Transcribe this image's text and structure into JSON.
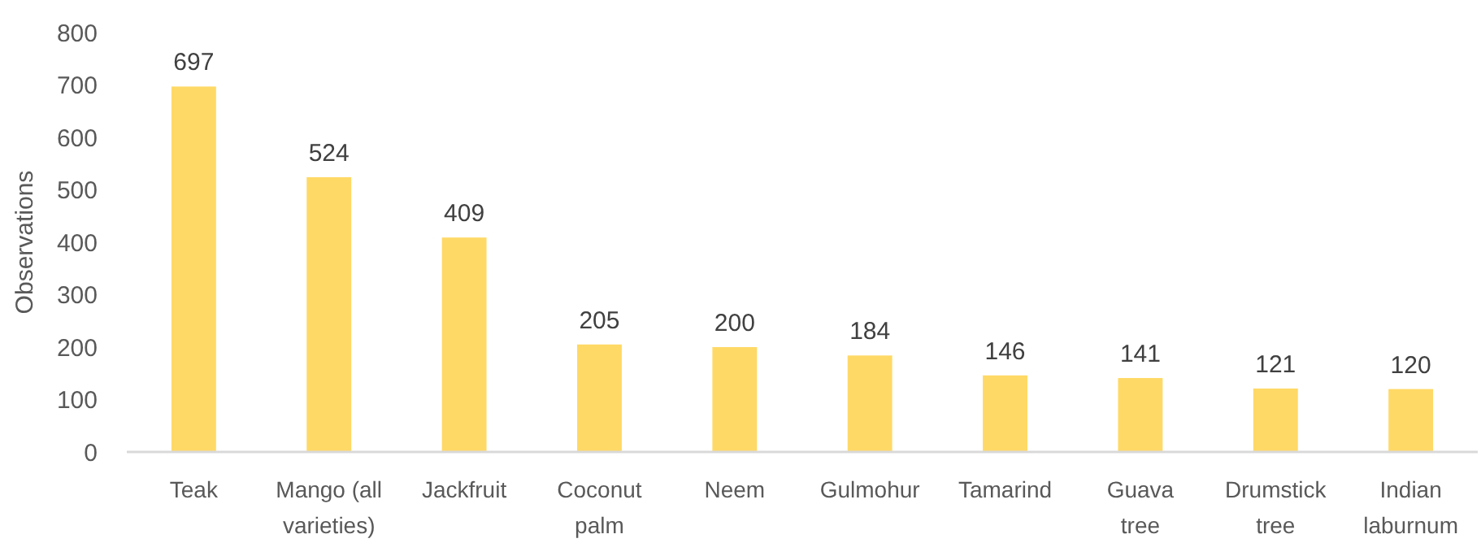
{
  "chart_data": {
    "type": "bar",
    "ylabel": "Observations",
    "categories": [
      "Teak",
      "Mango (all varieties)",
      "Jackfruit",
      "Coconut palm",
      "Neem",
      "Gulmohur",
      "Tamarind",
      "Guava tree",
      "Drumstick tree",
      "Indian laburnum"
    ],
    "values": [
      697,
      524,
      409,
      205,
      200,
      184,
      146,
      141,
      121,
      120
    ],
    "color": "#ffd966",
    "ylim": [
      0,
      800
    ],
    "yticks": [
      0,
      100,
      200,
      300,
      400,
      500,
      600,
      700,
      800
    ],
    "data_labels": true,
    "grid": false
  }
}
